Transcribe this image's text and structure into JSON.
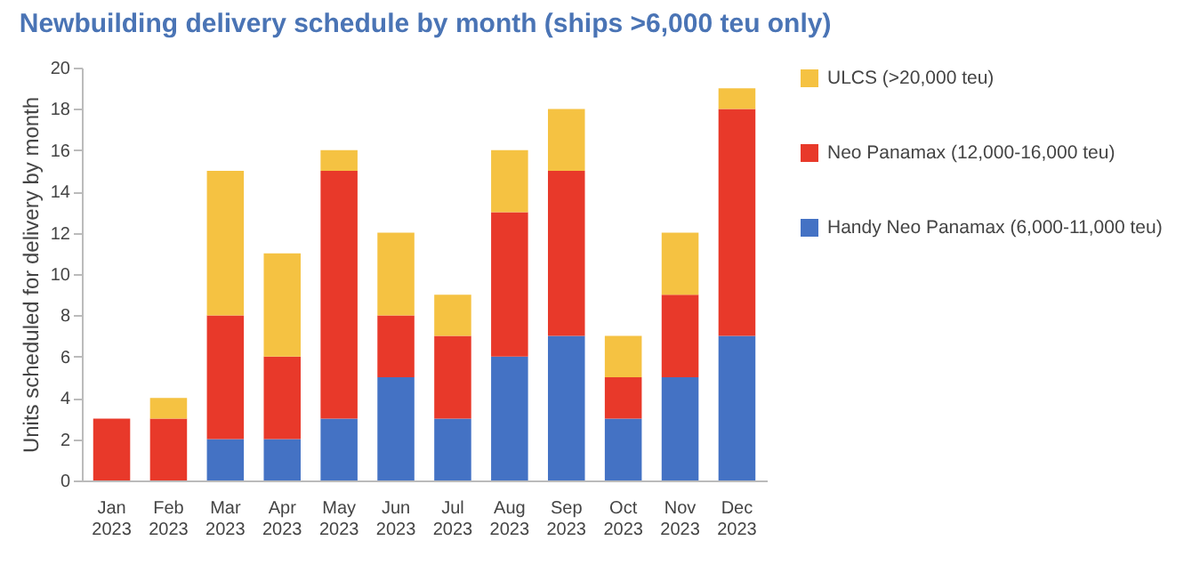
{
  "chart_data": {
    "type": "bar",
    "stacked": true,
    "title": "Newbuilding delivery schedule by month (ships >6,000 teu only)",
    "ylabel": "Units scheduled for delivery by month",
    "categories": [
      "Jan 2023",
      "Feb 2023",
      "Mar 2023",
      "Apr 2023",
      "May 2023",
      "Jun 2023",
      "Jul 2023",
      "Aug 2023",
      "Sep 2023",
      "Oct 2023",
      "Nov 2023",
      "Dec 2023"
    ],
    "series": [
      {
        "name": "Handy Neo Panamax (6,000-11,000 teu)",
        "color": "#4472c4",
        "values": [
          0,
          0,
          2,
          2,
          3,
          5,
          3,
          6,
          7,
          3,
          5,
          7
        ]
      },
      {
        "name": "Neo Panamax (12,000-16,000 teu)",
        "color": "#e8392a",
        "values": [
          3,
          3,
          6,
          4,
          12,
          3,
          4,
          7,
          8,
          2,
          4,
          11
        ]
      },
      {
        "name": "ULCS (>20,000 teu)",
        "color": "#f5c242",
        "values": [
          0,
          1,
          7,
          5,
          1,
          4,
          2,
          3,
          3,
          2,
          3,
          1
        ]
      }
    ],
    "ylim": [
      0,
      20
    ],
    "yticks": [
      0,
      2,
      4,
      6,
      8,
      10,
      12,
      14,
      16,
      18,
      20
    ],
    "grid": false,
    "legend": "right"
  }
}
